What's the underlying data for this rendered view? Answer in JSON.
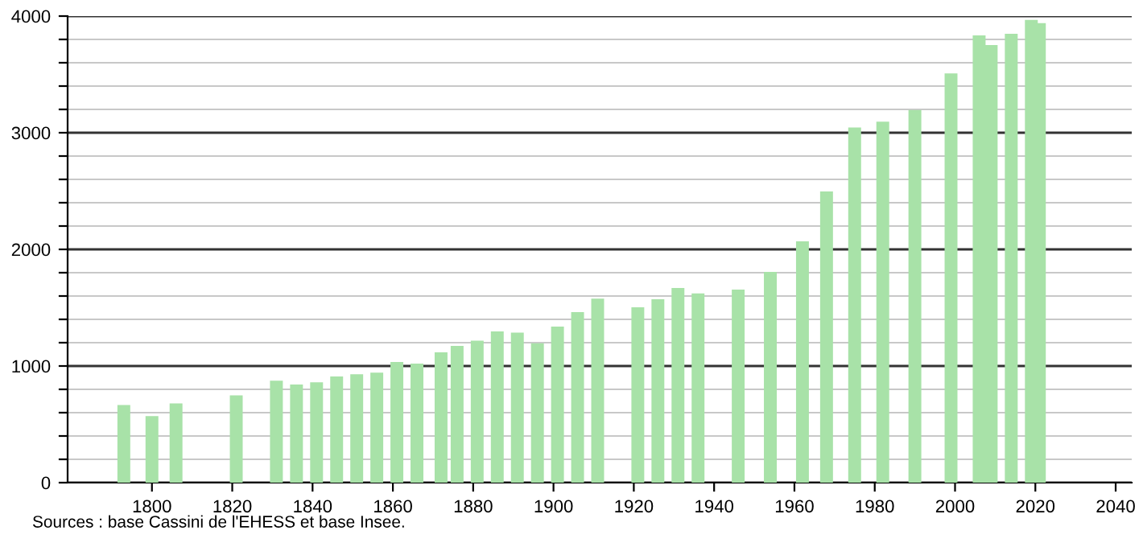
{
  "chart_data": {
    "type": "bar",
    "x": [
      1793,
      1800,
      1806,
      1821,
      1831,
      1836,
      1841,
      1846,
      1851,
      1856,
      1861,
      1866,
      1872,
      1876,
      1881,
      1886,
      1891,
      1896,
      1901,
      1906,
      1911,
      1921,
      1926,
      1931,
      1936,
      1946,
      1954,
      1962,
      1968,
      1975,
      1982,
      1990,
      1999,
      2006,
      2009,
      2014,
      2019,
      2021
    ],
    "values": [
      666,
      570,
      680,
      749,
      874,
      841,
      860,
      910,
      929,
      943,
      1034,
      1021,
      1117,
      1172,
      1218,
      1297,
      1287,
      1195,
      1338,
      1462,
      1577,
      1503,
      1572,
      1669,
      1623,
      1655,
      1807,
      2069,
      2497,
      3044,
      3094,
      3195,
      3508,
      3834,
      3752,
      3848,
      3968,
      3940
    ],
    "color": "#a8e2a8",
    "xlim": [
      1779,
      2044
    ],
    "xticks": [
      1800,
      1820,
      1840,
      1860,
      1880,
      1900,
      1920,
      1940,
      1960,
      1980,
      2000,
      2020,
      2040
    ],
    "ylim": [
      0,
      4000
    ],
    "yticks": [
      0,
      {
        "value": 200,
        "label": null
      },
      {
        "value": 400,
        "label": null
      },
      {
        "value": 600,
        "label": null
      },
      {
        "value": 800,
        "label": null
      },
      1000,
      {
        "value": 1200,
        "label": null
      },
      {
        "value": 1400,
        "label": null
      },
      {
        "value": 1600,
        "label": null
      },
      {
        "value": 1800,
        "label": null
      },
      2000,
      {
        "value": 2200,
        "label": null
      },
      {
        "value": 2400,
        "label": null
      },
      {
        "value": 2600,
        "label": null
      },
      {
        "value": 2800,
        "label": null
      },
      3000,
      {
        "value": 3200,
        "label": null
      },
      {
        "value": 3400,
        "label": null
      },
      {
        "value": 3600,
        "label": null
      },
      {
        "value": 3800,
        "label": null
      },
      4000
    ],
    "grid": "y",
    "annotations": [
      "Sources : base Cassini de l'EHESS et base Insee."
    ]
  }
}
